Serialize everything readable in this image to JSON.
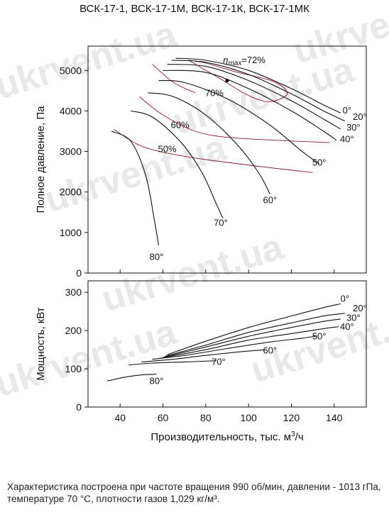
{
  "chart_data": {
    "title": "ВСК-17-1, ВСК-17-1М, ВСК-17-1К, ВСК-17-1МК",
    "xlabel": "Производительность, тыс. м³/ч",
    "xticks": [
      "40",
      "60",
      "80",
      "100",
      "120",
      "140"
    ],
    "xlim": [
      25,
      155
    ],
    "watermark": "ukrvent.ua",
    "panels": [
      {
        "id": "pressure",
        "type": "line",
        "ylabel": "Полное давление, Па",
        "ylim": [
          0,
          5600
        ],
        "yticks": [
          "0",
          "1000",
          "2000",
          "3000",
          "4000",
          "5000"
        ],
        "series": [
          {
            "name": "0°",
            "label_at": [
              146,
              3940
            ],
            "points": [
              [
                66,
                5300
              ],
              [
                80,
                5250
              ],
              [
                100,
                5000
              ],
              [
                120,
                4550
              ],
              [
                135,
                4150
              ],
              [
                143,
                3950
              ]
            ]
          },
          {
            "name": "20°",
            "label_at": [
              152,
              3780
            ],
            "points": [
              [
                64,
                5250
              ],
              [
                80,
                5200
              ],
              [
                100,
                4900
              ],
              [
                120,
                4420
              ],
              [
                135,
                4000
              ],
              [
                145,
                3750
              ]
            ]
          },
          {
            "name": "30°",
            "label_at": [
              149,
              3520
            ],
            "points": [
              [
                62,
                5150
              ],
              [
                80,
                5100
              ],
              [
                100,
                4750
              ],
              [
                120,
                4250
              ],
              [
                135,
                3800
              ],
              [
                143,
                3550
              ]
            ]
          },
          {
            "name": "40°",
            "label_at": [
              146,
              3230
            ],
            "points": [
              [
                60,
                5000
              ],
              [
                80,
                4950
              ],
              [
                100,
                4550
              ],
              [
                120,
                4000
              ],
              [
                135,
                3500
              ],
              [
                141,
                3280
              ]
            ]
          },
          {
            "name": "50°",
            "label_at": [
              133,
              2650
            ],
            "points": [
              [
                58,
                4750
              ],
              [
                70,
                4700
              ],
              [
                90,
                4300
              ],
              [
                110,
                3650
              ],
              [
                125,
                3000
              ],
              [
                133,
                2700
              ]
            ]
          },
          {
            "name": "60°",
            "label_at": [
              110,
              1720
            ],
            "points": [
              [
                53,
                4450
              ],
              [
                65,
                4350
              ],
              [
                80,
                3900
              ],
              [
                95,
                3150
              ],
              [
                105,
                2450
              ],
              [
                110,
                1950
              ]
            ]
          },
          {
            "name": "70°",
            "label_at": [
              87,
              1160
            ],
            "points": [
              [
                45,
                4000
              ],
              [
                55,
                3850
              ],
              [
                68,
                3250
              ],
              [
                78,
                2500
              ],
              [
                85,
                1700
              ],
              [
                88,
                1350
              ]
            ]
          },
          {
            "name": "80°",
            "label_at": [
              57,
              320
            ],
            "points": [
              [
                36,
                3500
              ],
              [
                45,
                3250
              ],
              [
                52,
                2400
              ],
              [
                56,
                1300
              ],
              [
                58,
                680
              ]
            ]
          }
        ],
        "efficiency": [
          {
            "name": "ηmax=72%",
            "label_at": [
              98,
              5180
            ],
            "points": [
              [
                72,
                5250
              ],
              [
                85,
                4850
              ],
              [
                100,
                4380
              ],
              [
                110,
                4230
              ],
              [
                118,
                4420
              ],
              [
                112,
                4720
              ],
              [
                95,
                4950
              ],
              [
                80,
                5180
              ],
              [
                72,
                5250
              ]
            ]
          },
          {
            "name": "70%",
            "label_at": [
              84,
              4370
            ],
            "points": [
              [
                55,
                5150
              ],
              [
                65,
                4700
              ],
              [
                75,
                4450
              ]
            ]
          },
          {
            "name": "60%",
            "label_at": [
              68,
              3580
            ],
            "points": [
              [
                49,
                4350
              ],
              [
                60,
                3900
              ],
              [
                75,
                3500
              ],
              [
                90,
                3350
              ],
              [
                115,
                3270
              ],
              [
                138,
                3220
              ]
            ]
          },
          {
            "name": "50%",
            "label_at": [
              62,
              2980
            ],
            "points": [
              [
                37,
                3550
              ],
              [
                48,
                3180
              ],
              [
                60,
                2980
              ],
              [
                80,
                2800
              ],
              [
                110,
                2600
              ],
              [
                130,
                2480
              ]
            ]
          }
        ],
        "bep": [
          90,
          4750
        ]
      },
      {
        "id": "power",
        "type": "line",
        "ylabel": "Мощность, кВт",
        "ylim": [
          0,
          330
        ],
        "yticks": [
          "0",
          "100",
          "200",
          "300"
        ],
        "series": [
          {
            "name": "0°",
            "label_at": [
              145,
              275
            ],
            "points": [
              [
                62,
                137
              ],
              [
                80,
                172
              ],
              [
                100,
                208
              ],
              [
                120,
                238
              ],
              [
                135,
                260
              ],
              [
                143,
                270
              ]
            ]
          },
          {
            "name": "20°",
            "label_at": [
              152,
              250
            ],
            "points": [
              [
                61,
                133
              ],
              [
                80,
                162
              ],
              [
                100,
                195
              ],
              [
                120,
                220
              ],
              [
                135,
                238
              ],
              [
                145,
                245
              ]
            ]
          },
          {
            "name": "30°",
            "label_at": [
              149,
              225
            ],
            "points": [
              [
                60,
                130
              ],
              [
                80,
                157
              ],
              [
                100,
                185
              ],
              [
                120,
                208
              ],
              [
                135,
                224
              ],
              [
                143,
                230
              ]
            ]
          },
          {
            "name": "40°",
            "label_at": [
              146,
              202
            ],
            "points": [
              [
                58,
                127
              ],
              [
                80,
                150
              ],
              [
                100,
                175
              ],
              [
                120,
                192
              ],
              [
                135,
                205
              ],
              [
                142,
                210
              ]
            ]
          },
          {
            "name": "50°",
            "label_at": [
              133,
              177
            ],
            "points": [
              [
                55,
                125
              ],
              [
                70,
                135
              ],
              [
                90,
                153
              ],
              [
                110,
                170
              ],
              [
                125,
                180
              ],
              [
                132,
                186
              ]
            ]
          },
          {
            "name": "60°",
            "label_at": [
              110,
              140
            ],
            "points": [
              [
                50,
                118
              ],
              [
                65,
                125
              ],
              [
                80,
                135
              ],
              [
                95,
                144
              ],
              [
                108,
                150
              ]
            ]
          },
          {
            "name": "70°",
            "label_at": [
              86,
              110
            ],
            "points": [
              [
                44,
                110
              ],
              [
                55,
                115
              ],
              [
                70,
                118
              ],
              [
                85,
                121
              ]
            ]
          },
          {
            "name": "80°",
            "label_at": [
              57,
              60
            ],
            "points": [
              [
                34,
                68
              ],
              [
                42,
                78
              ],
              [
                50,
                84
              ],
              [
                57,
                86
              ]
            ]
          }
        ]
      }
    ]
  },
  "caption": "Характеристика построена при частоте вращения 990 об/мин, давлении - 1013 гПа, температуре 70 °С, плотности газов 1,029 кг/м³."
}
